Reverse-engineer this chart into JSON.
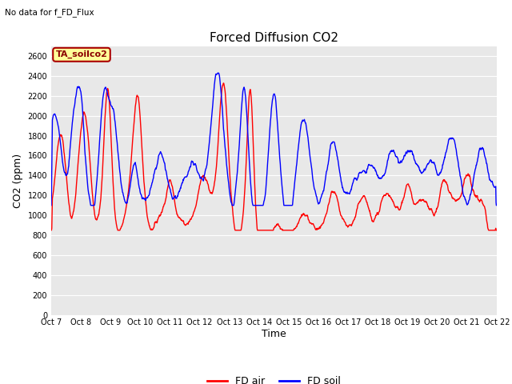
{
  "title": "Forced Diffusion CO2",
  "no_data_text": "No data for f_FD_Flux",
  "legend_box_text": "TA_soilco2",
  "ylabel": "CO2 (ppm)",
  "xlabel": "Time",
  "ylim": [
    0,
    2700
  ],
  "yticks": [
    0,
    200,
    400,
    600,
    800,
    1000,
    1200,
    1400,
    1600,
    1800,
    2000,
    2200,
    2400,
    2600
  ],
  "xtick_labels": [
    "Oct 7",
    "Oct 8",
    "Oct 9",
    "Oct 10",
    "Oct 11",
    "Oct 12",
    "Oct 13",
    "Oct 14",
    "Oct 15",
    "Oct 16",
    "Oct 17",
    "Oct 18",
    "Oct 19",
    "Oct 20",
    "Oct 21",
    "Oct 22"
  ],
  "fd_air_color": "#ff0000",
  "fd_soil_color": "#0000ff",
  "bg_color": "#e8e8e8",
  "legend_box_bg": "#ffff99",
  "legend_box_border": "#aa0000",
  "linewidth": 1.0,
  "figwidth": 6.4,
  "figheight": 4.8,
  "dpi": 100,
  "title_fontsize": 11,
  "tick_fontsize": 7,
  "ylabel_fontsize": 9
}
